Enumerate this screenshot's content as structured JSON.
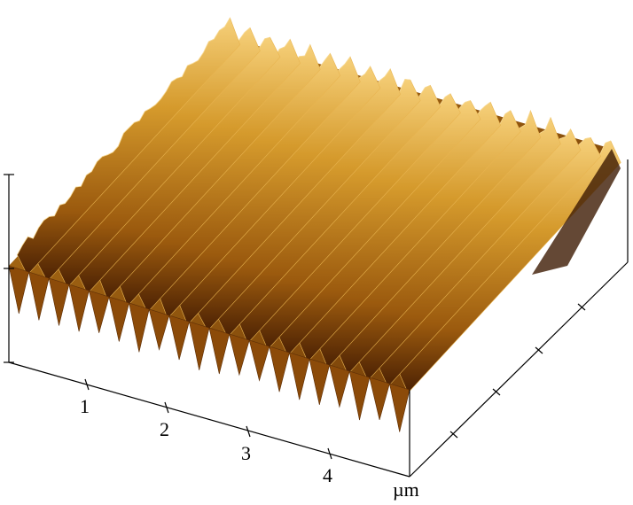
{
  "figure": {
    "type": "afm-3d-surface",
    "axis_unit": "µm",
    "x_ticks": [
      "1",
      "2",
      "3",
      "4"
    ],
    "y_ticks": 4,
    "z_ticks": 3,
    "ridge_count": 20,
    "colors": {
      "peak": "#f3c46a",
      "mid": "#c98a1e",
      "dark": "#7a4205",
      "shadow": "#3d1a02",
      "axis": "#000000"
    }
  }
}
